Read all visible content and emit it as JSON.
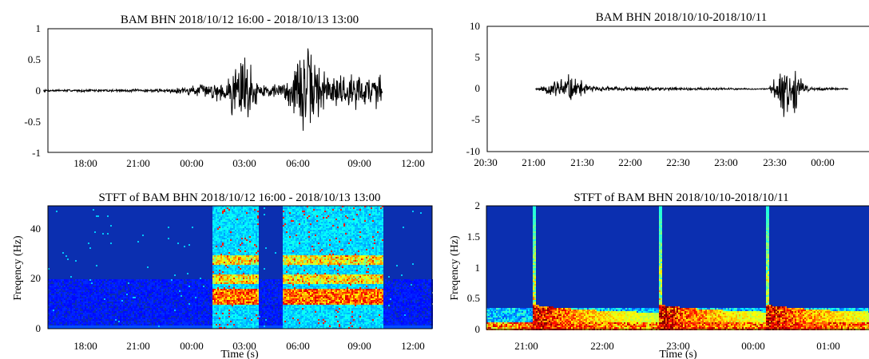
{
  "chart_data": [
    {
      "type": "line",
      "title": "BAM  BHN  2018/10/12 16:00 - 2018/10/13 13:00",
      "xlabel": "",
      "ylabel": "",
      "ylim": [
        -1,
        1
      ],
      "y_ticks": [
        "1",
        "0.5",
        "0",
        "-0.5",
        "-1"
      ],
      "x_ticks": [
        "18:00",
        "21:00",
        "00:00",
        "03:00",
        "06:00",
        "09:00",
        "12:00"
      ],
      "grid": false,
      "envelope": [
        {
          "t": "16:00",
          "amp": 0.02
        },
        {
          "t": "23:00",
          "amp": 0.03
        },
        {
          "t": "01:30",
          "amp": 0.15
        },
        {
          "t": "02:30",
          "amp": 0.25
        },
        {
          "t": "03:00",
          "amp": 0.9
        },
        {
          "t": "03:40",
          "amp": 0.6
        },
        {
          "t": "04:10",
          "amp": 0.12
        },
        {
          "t": "05:30",
          "amp": 0.15
        },
        {
          "t": "06:50",
          "amp": 0.85
        },
        {
          "t": "08:00",
          "amp": 0.35
        },
        {
          "t": "10:30",
          "amp": 0.3
        },
        {
          "t": "11:00",
          "amp": 0.4
        },
        {
          "t": "11:10",
          "amp": 0.0
        }
      ]
    },
    {
      "type": "line",
      "title": "BAM  BHN  2018/10/10-2018/10/11",
      "xlabel": "",
      "ylabel": "",
      "ylim": [
        -10,
        10
      ],
      "y_ticks": [
        "10",
        "5",
        "0",
        "-5",
        "-10"
      ],
      "x_ticks": [
        "20:30",
        "21:00",
        "21:30",
        "22:00",
        "22:30",
        "23:00",
        "23:30",
        "00:00"
      ],
      "grid": false,
      "envelope": [
        {
          "t": "21:00",
          "amp": 0.1
        },
        {
          "t": "21:20",
          "amp": 2.8
        },
        {
          "t": "21:35",
          "amp": 0.5
        },
        {
          "t": "23:25",
          "amp": 0.1
        },
        {
          "t": "23:37",
          "amp": 5.8
        },
        {
          "t": "23:50",
          "amp": 0.4
        },
        {
          "t": "00:15",
          "amp": 0.1
        }
      ]
    },
    {
      "type": "heatmap",
      "title": "STFT  of  BAM  BHN  2018/10/12 16:00 - 2018/10/13 13:00",
      "xlabel": "Time (s)",
      "ylabel": "Freqency (Hz)",
      "ylim": [
        0,
        50
      ],
      "y_ticks": [
        "40",
        "20",
        "0"
      ],
      "x_ticks": [
        "18:00",
        "21:00",
        "00:00",
        "03:00",
        "06:00",
        "09:00",
        "12:00"
      ],
      "colormap": "jet",
      "background": "#0b2fb0",
      "active_windows": [
        [
          "01:30",
          "04:10"
        ],
        [
          "05:30",
          "11:10"
        ]
      ],
      "strong_bands_hz": [
        [
          10,
          16
        ],
        [
          18,
          22
        ],
        [
          26,
          30
        ]
      ]
    },
    {
      "type": "heatmap",
      "title": "STFT  of  BAM  BHN  2018/10/10-2018/10/11",
      "xlabel": "Time (s)",
      "ylabel": "Freqency (Hz)",
      "ylim": [
        0,
        2
      ],
      "y_ticks": [
        "2",
        "1.5",
        "1",
        "0.5",
        "0"
      ],
      "x_ticks": [
        "21:00",
        "22:00",
        "23:00",
        "00:00",
        "01:00"
      ],
      "colormap": "jet",
      "background": "#0b2fb0",
      "event_onsets": [
        "21:05",
        "22:45",
        "00:10"
      ],
      "low_band_hz": [
        0,
        0.12
      ]
    }
  ]
}
